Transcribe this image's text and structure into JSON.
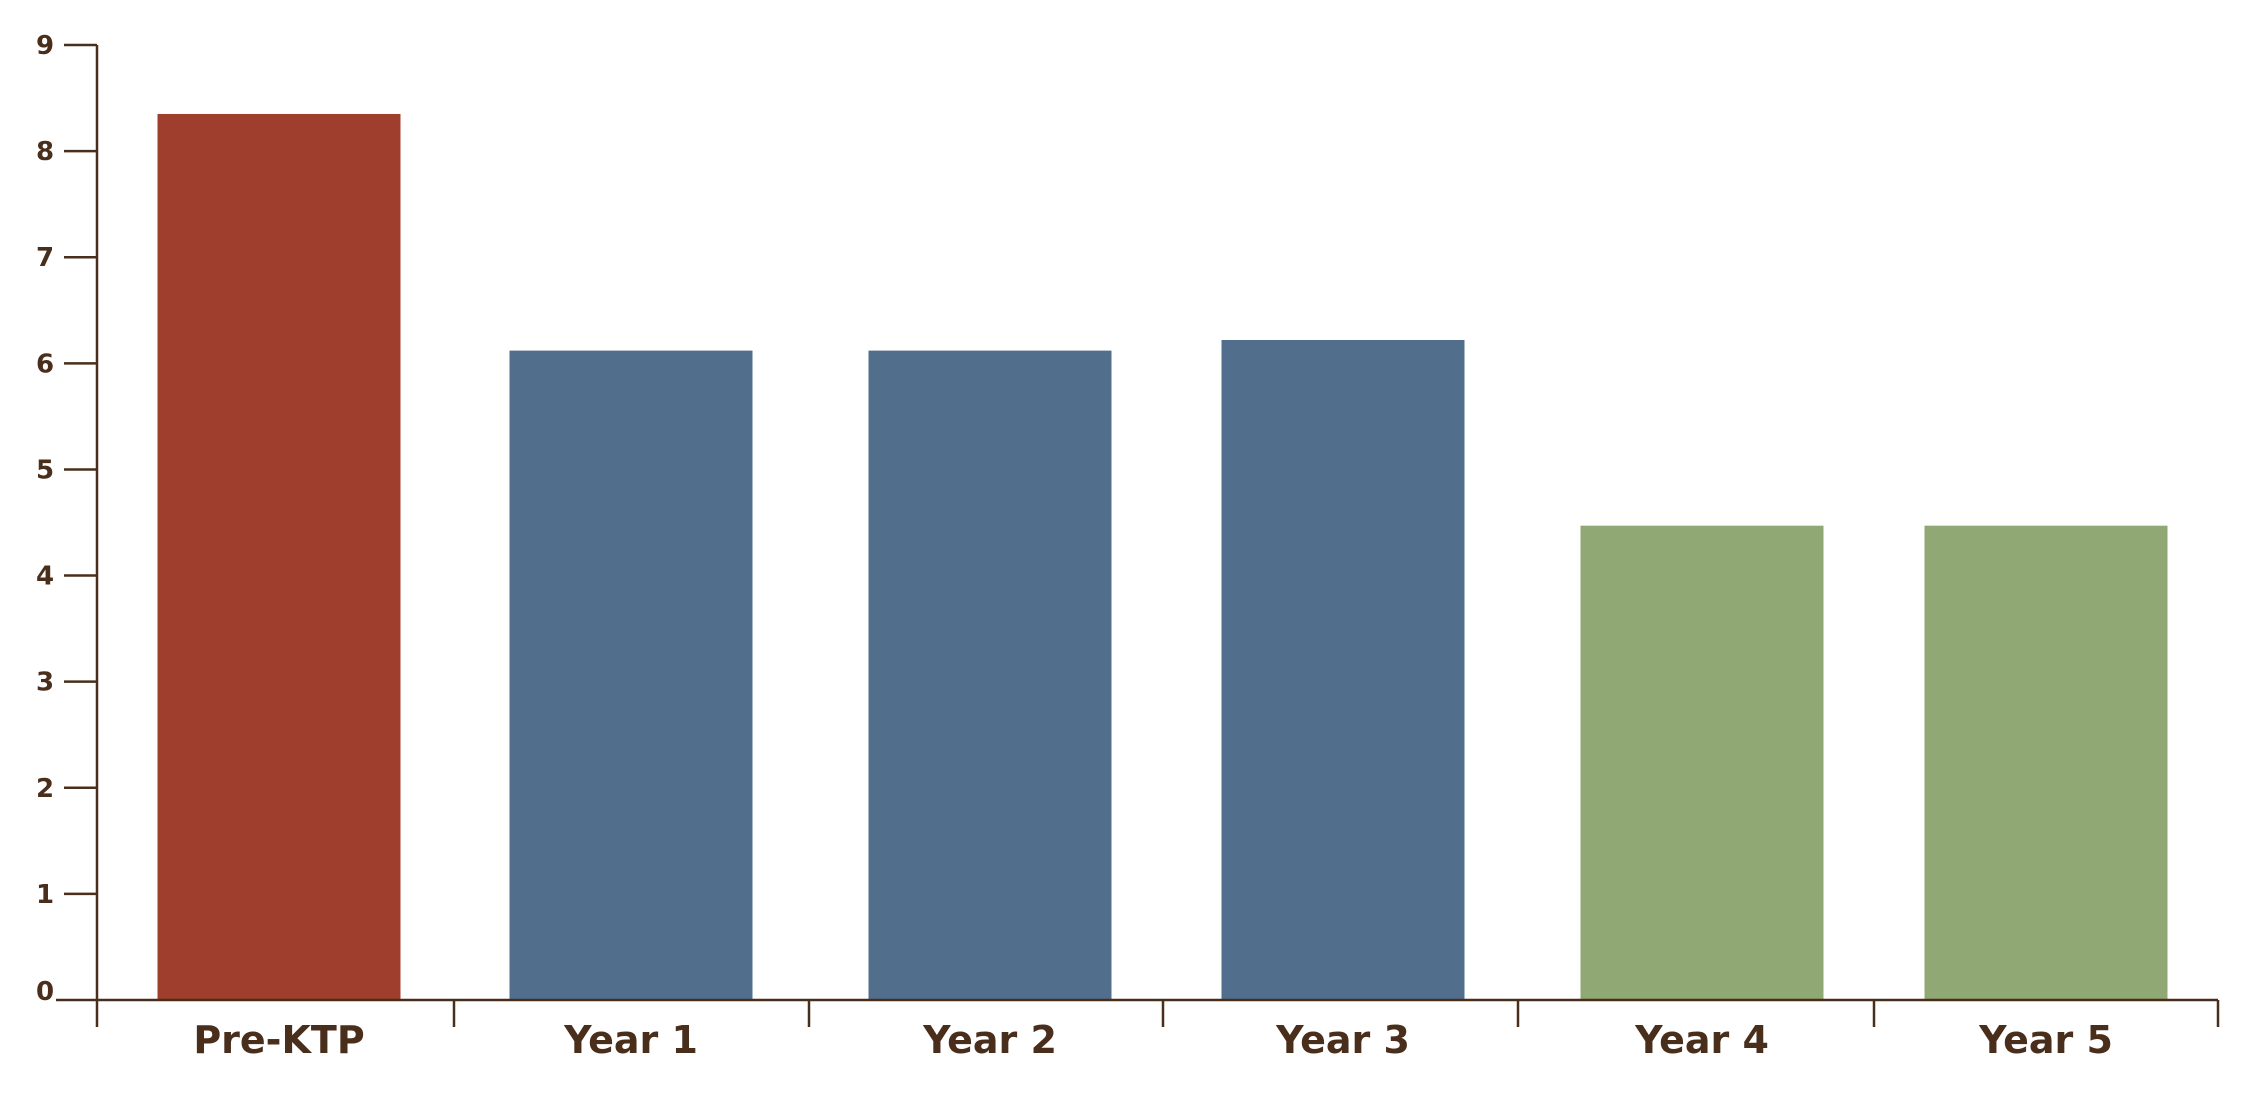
{
  "chart_data": {
    "type": "bar",
    "categories": [
      "Pre-KTP",
      "Year 1",
      "Year 2",
      "Year 3",
      "Year 4",
      "Year 5"
    ],
    "values": [
      8.35,
      6.12,
      6.12,
      6.22,
      4.47,
      4.47
    ],
    "bar_colors": [
      "#a03e2d",
      "#516f8d",
      "#516f8d",
      "#516f8d",
      "#8fa874",
      "#8fa874"
    ],
    "axis_color": "#4a2e1c",
    "text_color": "#4a2e1c",
    "ylim": [
      0,
      9
    ],
    "yticks": [
      "0",
      "1",
      "2",
      "3",
      "4",
      "5",
      "6",
      "7",
      "8",
      "9"
    ],
    "grid": false,
    "title": "",
    "xlabel": "",
    "ylabel": ""
  }
}
